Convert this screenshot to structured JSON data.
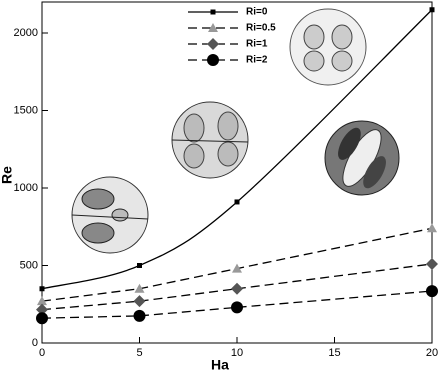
{
  "chart_data": {
    "type": "line",
    "x_label": "Ha",
    "y_label": "Re",
    "x": [
      0,
      5,
      10,
      20
    ],
    "xlim": [
      0,
      20
    ],
    "xticks": [
      0,
      5,
      10,
      15,
      20
    ],
    "ylim": [
      0,
      2200
    ],
    "yticks": [
      0,
      500,
      1000,
      1500,
      2000
    ],
    "legend": "top",
    "series": [
      {
        "name": "Ri=0",
        "color": "#000000",
        "marker": "square",
        "dash": "solid",
        "smooth": true,
        "values": [
          350,
          500,
          910,
          2150
        ]
      },
      {
        "name": "Ri=0.5",
        "color": "#999999",
        "marker": "triangle",
        "dash": "dashed",
        "values": [
          270,
          350,
          480,
          740
        ]
      },
      {
        "name": "Ri=1",
        "color": "#555555",
        "marker": "diamond",
        "dash": "dashed",
        "values": [
          215,
          270,
          350,
          510
        ]
      },
      {
        "name": "Ri=2",
        "color": "#000000",
        "marker": "circle",
        "dash": "dashed",
        "values": [
          160,
          175,
          230,
          335
        ]
      }
    ]
  }
}
